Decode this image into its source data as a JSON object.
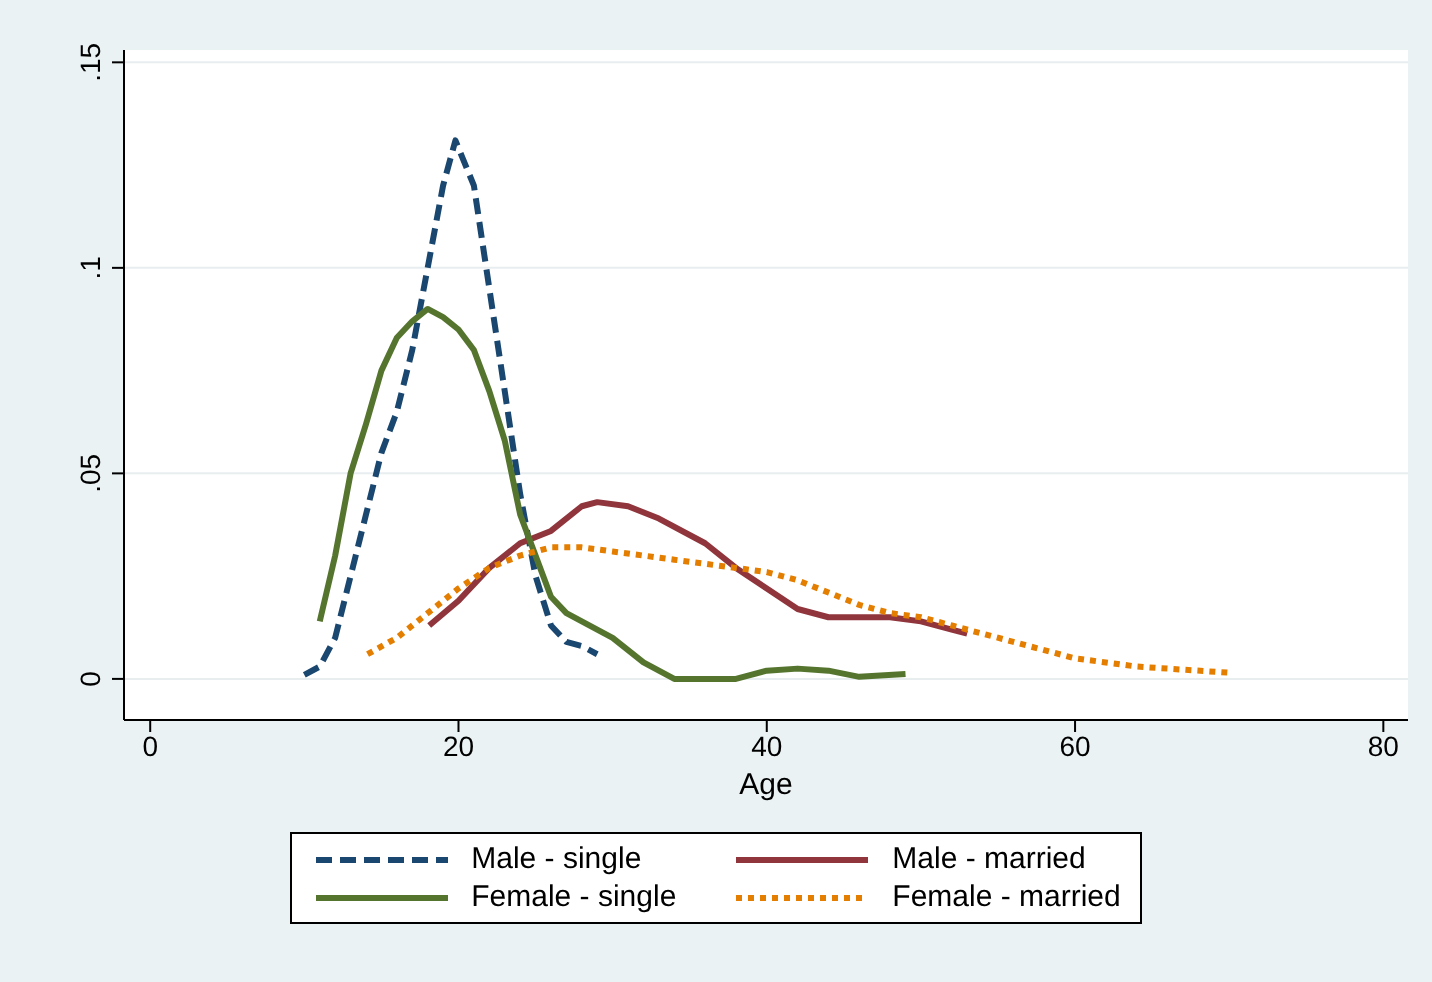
{
  "chart_data": {
    "type": "line",
    "xlabel": "Age",
    "xlim": [
      -1.7,
      81.6
    ],
    "xticks": [
      0,
      20,
      40,
      60,
      80
    ],
    "ylim": [
      -0.01,
      0.153
    ],
    "yticks": [
      0,
      {
        "value": 0.05,
        "label": ".05"
      },
      {
        "value": 0.1,
        "label": ".1"
      },
      {
        "value": 0.15,
        "label": ".15"
      }
    ],
    "grid": "y",
    "legend": "bottom",
    "marker": "none",
    "series": [
      {
        "name": "Male - single",
        "color": "#1a476f",
        "line_style": "dashed",
        "x": [
          10,
          11,
          12,
          13,
          14,
          15,
          16,
          17,
          18,
          19,
          19.8,
          21,
          22,
          23,
          24,
          25,
          26,
          27,
          28,
          29
        ],
        "values": [
          0.001,
          0.003,
          0.01,
          0.025,
          0.04,
          0.055,
          0.065,
          0.08,
          0.1,
          0.12,
          0.131,
          0.12,
          0.095,
          0.07,
          0.045,
          0.025,
          0.013,
          0.009,
          0.008,
          0.006
        ]
      },
      {
        "name": "Male - married",
        "color": "#90353b",
        "line_style": "solid",
        "x": [
          18.1,
          20,
          22,
          24,
          26,
          28,
          29,
          31,
          33,
          36,
          38,
          40,
          42,
          44,
          46,
          48,
          50,
          52,
          53
        ],
        "values": [
          0.013,
          0.019,
          0.027,
          0.033,
          0.036,
          0.042,
          0.043,
          0.042,
          0.039,
          0.033,
          0.027,
          0.022,
          0.017,
          0.015,
          0.015,
          0.015,
          0.014,
          0.012,
          0.011
        ]
      },
      {
        "name": "Female - single",
        "color": "#55752f",
        "line_style": "solid",
        "x": [
          11,
          12,
          13,
          14,
          15,
          16,
          17,
          18,
          19,
          20,
          21,
          22,
          23,
          24,
          25,
          26,
          27,
          28,
          30,
          32,
          34,
          38,
          40,
          42,
          44,
          46,
          49
        ],
        "values": [
          0.014,
          0.03,
          0.05,
          0.062,
          0.075,
          0.083,
          0.087,
          0.09,
          0.088,
          0.085,
          0.08,
          0.07,
          0.058,
          0.04,
          0.03,
          0.02,
          0.016,
          0.014,
          0.01,
          0.004,
          0,
          0,
          0.002,
          0.0025,
          0.002,
          0.0005,
          0.0012
        ]
      },
      {
        "name": "Female - married",
        "color": "#e37e00",
        "line_style": "dotted",
        "x": [
          14.1,
          16,
          18,
          20,
          22,
          24,
          26,
          28,
          30,
          34,
          38,
          40,
          42,
          44,
          46,
          48,
          50,
          52,
          54,
          56,
          58,
          60,
          62,
          64,
          66,
          70
        ],
        "values": [
          0.006,
          0.01,
          0.016,
          0.022,
          0.027,
          0.03,
          0.032,
          0.032,
          0.031,
          0.029,
          0.027,
          0.026,
          0.024,
          0.021,
          0.018,
          0.016,
          0.015,
          0.013,
          0.011,
          0.009,
          0.007,
          0.005,
          0.004,
          0.003,
          0.0025,
          0.0015
        ]
      }
    ]
  }
}
